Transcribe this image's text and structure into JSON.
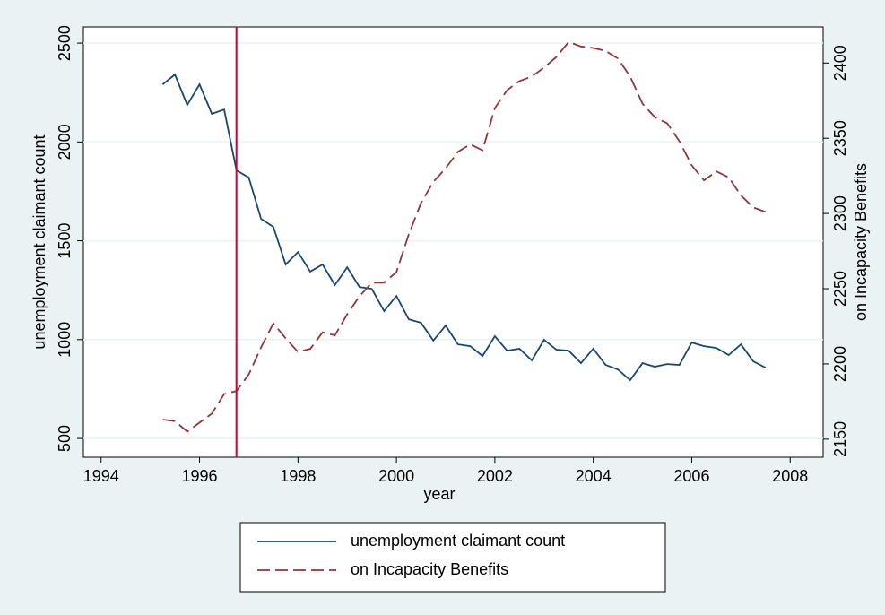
{
  "chart_data": {
    "type": "line",
    "x_label": "year",
    "y_label": "unemployment claimant count",
    "y2_label": "on Incapacity Benefits",
    "x": [
      1995.25,
      1995.5,
      1995.75,
      1996,
      1996.25,
      1996.5,
      1996.75,
      1997,
      1997.25,
      1997.5,
      1997.75,
      1998,
      1998.25,
      1998.5,
      1998.75,
      1999,
      1999.25,
      1999.5,
      1999.75,
      2000,
      2000.25,
      2000.5,
      2000.75,
      2001,
      2001.25,
      2001.5,
      2001.75,
      2002,
      2002.25,
      2002.5,
      2002.75,
      2003,
      2003.25,
      2003.5,
      2003.75,
      2004,
      2004.25,
      2004.5,
      2004.75,
      2005,
      2005.25,
      2005.5,
      2005.75,
      2006,
      2006.25,
      2006.5,
      2006.75,
      2007,
      2007.25,
      2007.5
    ],
    "series": [
      {
        "name": "unemployment claimant count",
        "color": "#1a476f",
        "dash": false,
        "values": [
          2291,
          2341,
          2187,
          2291,
          2142,
          2164,
          1856,
          1820,
          1611,
          1570,
          1380,
          1443,
          1344,
          1380,
          1276,
          1366,
          1266,
          1257,
          1144,
          1221,
          1103,
          1085,
          995,
          1071,
          976,
          967,
          917,
          1017,
          944,
          954,
          895,
          999,
          949,
          944,
          881,
          954,
          872,
          849,
          795,
          881,
          863,
          876,
          872,
          985,
          967,
          958,
          922,
          976,
          890,
          858
        ]
      },
      {
        "name": "on Incapacity Benefits",
        "color": "#90353b",
        "dash": true,
        "axis": "y2",
        "values": [
          2163,
          2162,
          2155,
          2161,
          2167,
          2180,
          2182,
          2193,
          2211,
          2227,
          2217,
          2208,
          2210,
          2221,
          2219,
          2233,
          2245,
          2254,
          2254,
          2261,
          2286,
          2307,
          2321,
          2330,
          2341,
          2346,
          2342,
          2370,
          2382,
          2388,
          2391,
          2397,
          2404,
          2414,
          2411,
          2410,
          2408,
          2403,
          2391,
          2373,
          2364,
          2360,
          2348,
          2332,
          2322,
          2328,
          2324,
          2312,
          2304,
          2301
        ]
      }
    ],
    "xlim": [
      1993.64,
      2008.67
    ],
    "xticks": [
      1994,
      1996,
      1998,
      2000,
      2002,
      2004,
      2006,
      2008
    ],
    "ylim": [
      405,
      2582
    ],
    "yticks": [
      500,
      1000,
      1500,
      2000,
      2500
    ],
    "y2lim": [
      2138,
      2424
    ],
    "y2ticks": [
      2150,
      2200,
      2250,
      2300,
      2350,
      2400
    ],
    "xline": 1996.75,
    "xline_color": "#c10534",
    "grid": true,
    "legend": "bottom"
  }
}
